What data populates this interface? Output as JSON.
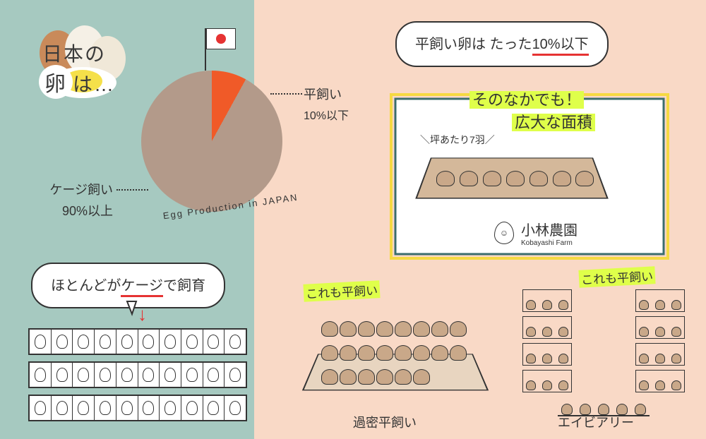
{
  "layout": {
    "bg_left_color": "#a6c9c0",
    "bg_right_color": "#f9d9c6"
  },
  "title": {
    "line1": "日本の",
    "egg_word": "卵",
    "line2_suffix": "は…"
  },
  "pie": {
    "type": "pie",
    "slices": [
      {
        "label": "ケージ飼い",
        "pct_text": "90%以上",
        "value": 92,
        "color": "#b39a8a"
      },
      {
        "label": "平飼い",
        "pct_text": "10%以下",
        "value": 8,
        "color": "#f05a28"
      }
    ],
    "curve_text": "Egg Production in JAPAN"
  },
  "bubbles": {
    "b1_pre": "平飼い卵は たった",
    "b1_accent": "10%以下",
    "b2_pre": "ほとんどが",
    "b2_accent": "ケージ",
    "b2_post": "で飼育"
  },
  "farm_box": {
    "highlight1": "そのなかでも！",
    "highlight2": "広大な面積",
    "tsubo": "＼坪あたり7羽／",
    "logo_main": "小林農園",
    "logo_sub": "Kobayashi Farm",
    "chicken_count": 7,
    "floor_color": "#d4b89a",
    "border_outer": "#f5d942",
    "border_inner": "#3b6d6d"
  },
  "cage": {
    "rows": 3,
    "cols": 10
  },
  "crowd": {
    "tag": "これも平飼い",
    "caption": "過密平飼い",
    "chicken_count": 22
  },
  "aviary": {
    "tag": "これも平飼い",
    "caption": "エイビアリー",
    "tiers": 4
  },
  "colors": {
    "text": "#3a3a3a",
    "accent_red": "#e63333",
    "highlight_green": "#dfff4a",
    "hen_fill": "#c9a889"
  }
}
